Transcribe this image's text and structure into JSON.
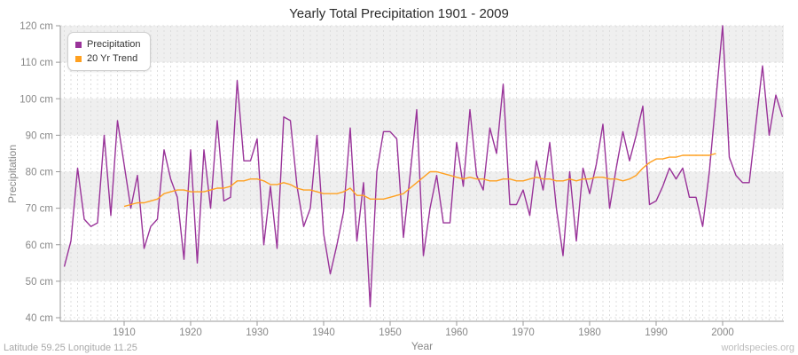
{
  "title": "Yearly Total Precipitation 1901 - 2009",
  "legend": {
    "items": [
      {
        "label": "Precipitation",
        "color": "#993399"
      },
      {
        "label": "20 Yr Trend",
        "color": "#FFA020"
      }
    ]
  },
  "y_axis": {
    "title": "Precipitation",
    "unit": "cm",
    "tick_labels": [
      "120 cm",
      "110 cm",
      "100 cm",
      "90 cm",
      "80 cm",
      "70 cm",
      "60 cm",
      "50 cm",
      "40 cm"
    ]
  },
  "x_axis": {
    "title": "Year",
    "tick_labels": [
      "1910",
      "1920",
      "1930",
      "1940",
      "1950",
      "1960",
      "1970",
      "1980",
      "1990",
      "2000"
    ]
  },
  "footer": {
    "left": "Latitude 59.25 Longitude 11.25",
    "right": "worldspecies.org"
  },
  "colors": {
    "precipitation": "#993399",
    "trend": "#FFA020",
    "band_gray": "#efefef",
    "grid": "#dcdcdc",
    "axis": "#999999",
    "tick_text": "#888888"
  },
  "chart_data": {
    "type": "line",
    "title": "Yearly Total Precipitation 1901 - 2009",
    "xlabel": "Year",
    "ylabel": "Precipitation",
    "ylim": [
      40,
      120
    ],
    "xlim": [
      1901,
      2009
    ],
    "y_tick_step": 10,
    "x_tick_values": [
      1910,
      1920,
      1930,
      1940,
      1950,
      1960,
      1970,
      1980,
      1990,
      2000
    ],
    "grid": "alternating horizontal bands, dashed yearly vertical gridlines",
    "legend_position": "top-left inside plot",
    "series": [
      {
        "name": "Precipitation",
        "color": "#993399",
        "x_start": 1901,
        "x_step": 1,
        "values": [
          54,
          61,
          81,
          67,
          65,
          66,
          90,
          68,
          94,
          82,
          70,
          79,
          59,
          65,
          67,
          86,
          78,
          73,
          56,
          86,
          55,
          86,
          70,
          94,
          72,
          73,
          105,
          83,
          83,
          89,
          60,
          76,
          59,
          95,
          94,
          76,
          65,
          70,
          90,
          63,
          52,
          60,
          69,
          92,
          61,
          77,
          43,
          80,
          91,
          91,
          89,
          62,
          79,
          97,
          57,
          70,
          79,
          66,
          66,
          88,
          76,
          97,
          79,
          75,
          92,
          85,
          104,
          71,
          71,
          75,
          68,
          83,
          75,
          88,
          70,
          57,
          80,
          61,
          81,
          74,
          82,
          93,
          70,
          81,
          91,
          83,
          90,
          98,
          71,
          72,
          76,
          81,
          78,
          81,
          73,
          73,
          65,
          80,
          100,
          120,
          84,
          79,
          77,
          77,
          93,
          109,
          90,
          101,
          95
        ]
      },
      {
        "name": "20 Yr Trend",
        "color": "#FFA020",
        "x_start": 1910,
        "x_step": 1,
        "values": [
          70.5,
          71,
          71.5,
          71.5,
          72,
          72.5,
          74,
          74.5,
          75,
          75,
          74.5,
          74.5,
          74.5,
          75,
          75.5,
          75.5,
          76,
          77.5,
          77.5,
          78,
          78,
          77.5,
          76.5,
          76.5,
          77,
          76.5,
          75.5,
          75,
          75,
          74.5,
          74,
          74,
          74,
          74.5,
          75.5,
          73.5,
          73.5,
          72.5,
          72.5,
          72.5,
          73,
          73.5,
          74,
          75.5,
          77,
          78.5,
          80,
          80,
          79.5,
          79,
          78.5,
          78,
          78.5,
          78,
          78,
          77.5,
          77.5,
          78,
          78,
          77.5,
          77.5,
          78,
          78.5,
          78,
          78,
          77.5,
          77.5,
          78,
          77.5,
          78,
          78,
          78.5,
          78.5,
          78,
          78,
          77.5,
          78,
          79,
          81,
          82.5,
          83.5,
          83.5,
          84,
          84,
          84.5,
          84.5,
          84.5,
          84.5,
          84.5,
          85
        ]
      }
    ]
  }
}
